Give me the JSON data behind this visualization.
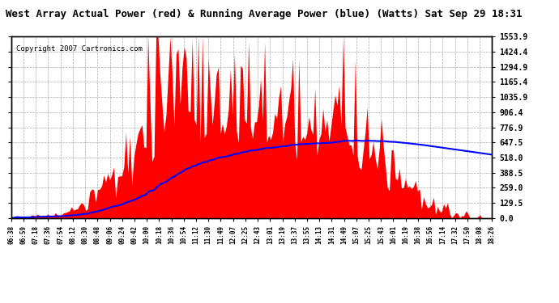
{
  "title": "West Array Actual Power (red) & Running Average Power (blue) (Watts) Sat Sep 29 18:31",
  "copyright": "Copyright 2007 Cartronics.com",
  "ylabel_right": [
    "0.0",
    "129.5",
    "259.0",
    "388.5",
    "518.0",
    "647.5",
    "776.9",
    "906.4",
    "1035.9",
    "1165.4",
    "1294.9",
    "1424.4",
    "1553.9"
  ],
  "yticks": [
    0,
    129.5,
    259.0,
    388.5,
    518.0,
    647.5,
    776.9,
    906.4,
    1035.9,
    1165.4,
    1294.9,
    1424.4,
    1553.9
  ],
  "ymax": 1553.9,
  "bg_color": "#ffffff",
  "plot_bg": "#ffffff",
  "grid_color": "#aaaaaa",
  "actual_color": "#ff0000",
  "avg_color": "#0000ff",
  "title_fontsize": 9,
  "copyright_fontsize": 6.5,
  "time_labels": [
    "06:38",
    "06:59",
    "07:18",
    "07:36",
    "07:54",
    "08:12",
    "08:30",
    "08:48",
    "09:06",
    "09:24",
    "09:42",
    "10:00",
    "10:18",
    "10:36",
    "10:54",
    "11:12",
    "11:30",
    "11:49",
    "12:07",
    "12:25",
    "12:43",
    "13:01",
    "13:19",
    "13:37",
    "13:55",
    "14:13",
    "14:31",
    "14:49",
    "15:07",
    "15:25",
    "15:43",
    "16:01",
    "16:19",
    "16:38",
    "16:56",
    "17:14",
    "17:32",
    "17:50",
    "18:08",
    "18:26"
  ]
}
